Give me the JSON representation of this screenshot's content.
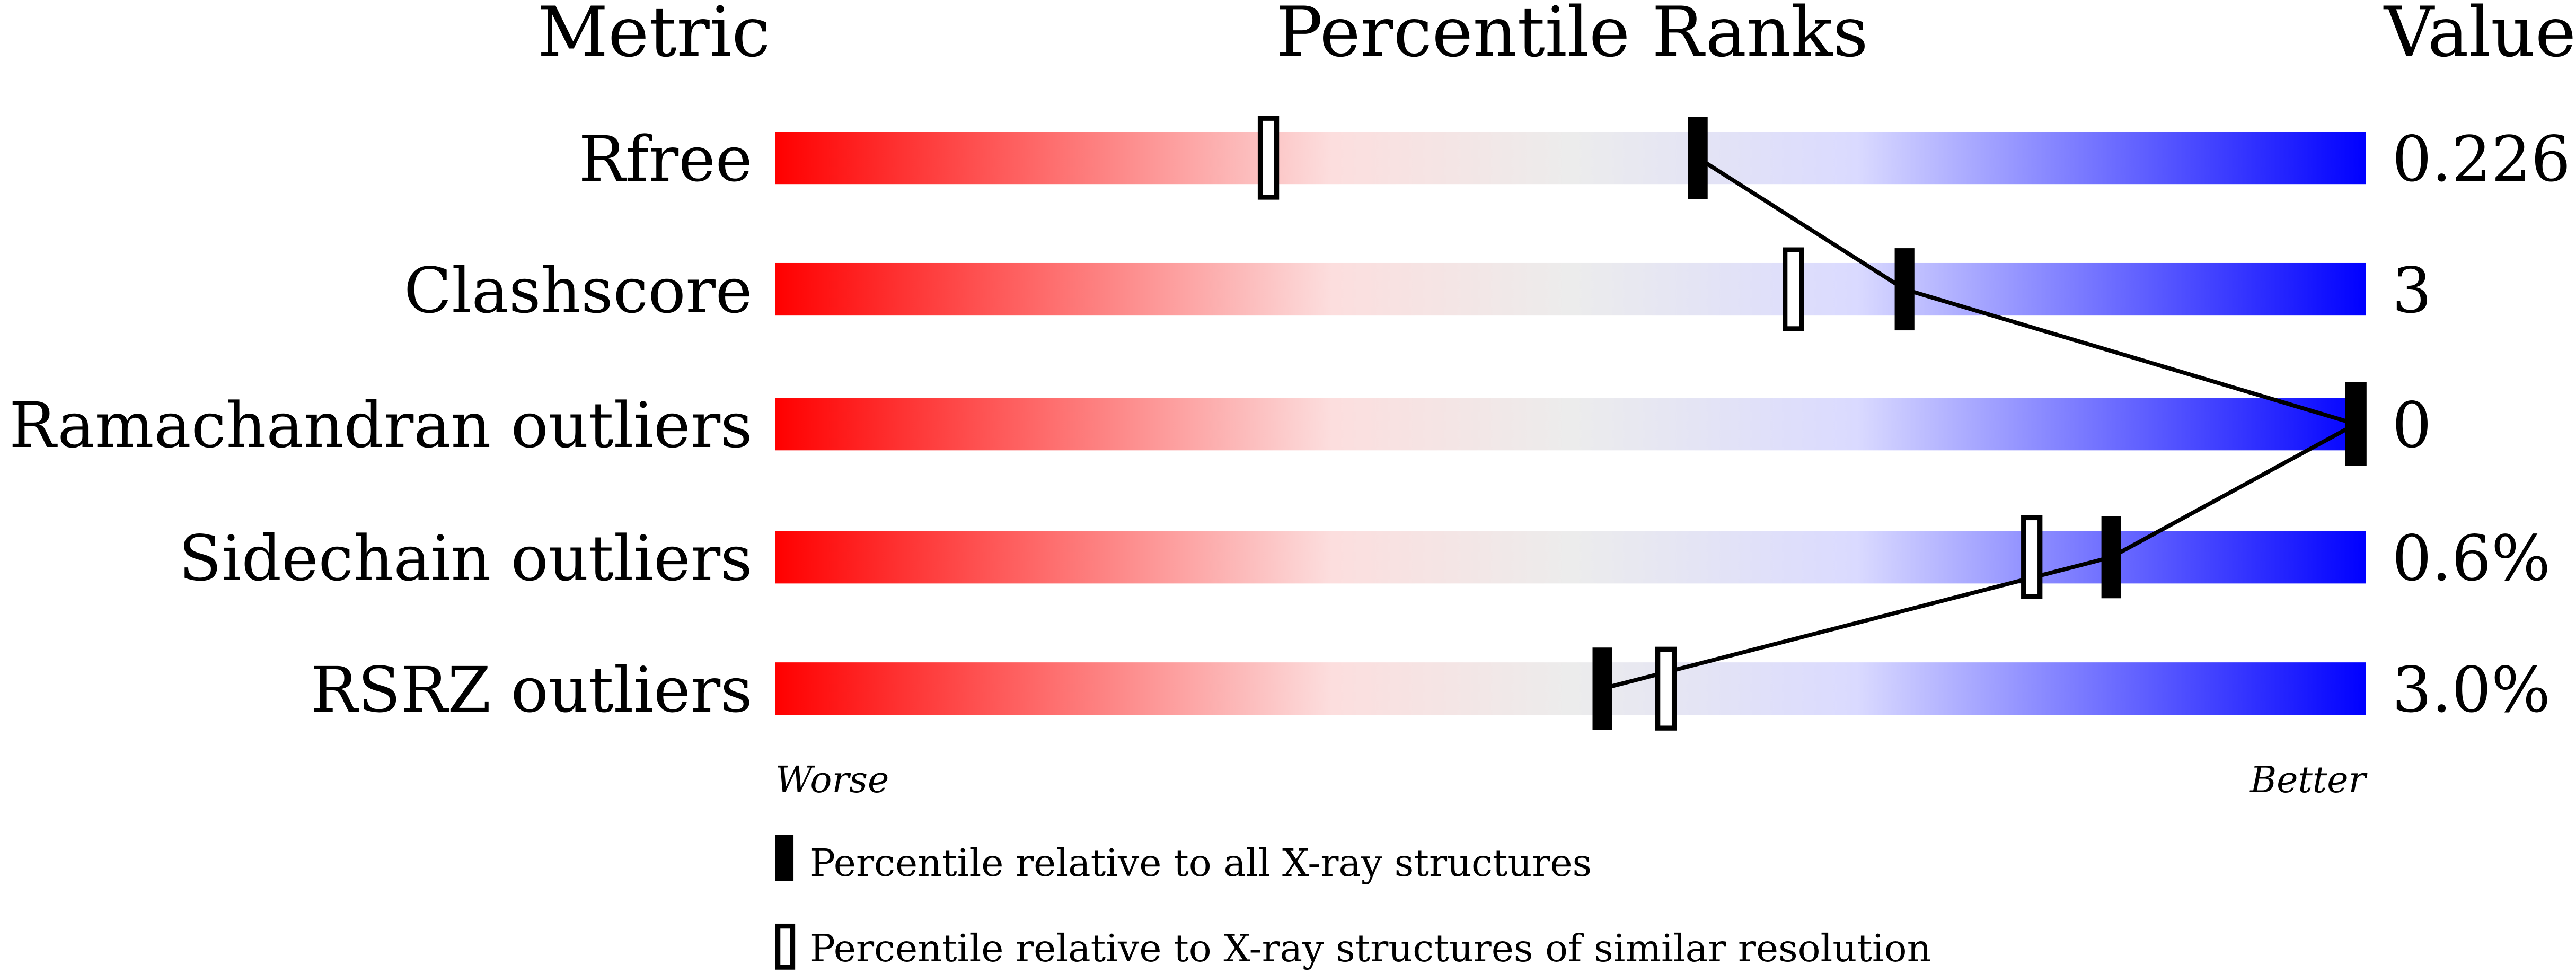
{
  "chart_data": {
    "type": "bar",
    "headers": {
      "metric": "Metric",
      "ranks": "Percentile Ranks",
      "value": "Value"
    },
    "xlim": [
      0,
      100
    ],
    "axis_labels": {
      "left": "Worse",
      "right": "Better"
    },
    "colors": {
      "worse": "#ff0000",
      "mid": "#ececec",
      "better": "#0000ff",
      "marker": "#000000"
    },
    "rows": [
      {
        "metric": "Rfree",
        "value": "0.226",
        "percentile_all": 58,
        "percentile_similar": 31
      },
      {
        "metric": "Clashscore",
        "value": "3",
        "percentile_all": 71,
        "percentile_similar": 64
      },
      {
        "metric": "Ramachandran outliers",
        "value": "0",
        "percentile_all": 100,
        "percentile_similar": 100
      },
      {
        "metric": "Sidechain outliers",
        "value": "0.6%",
        "percentile_all": 84,
        "percentile_similar": 79
      },
      {
        "metric": "RSRZ outliers",
        "value": "3.0%",
        "percentile_all": 52,
        "percentile_similar": 56
      }
    ],
    "legend": [
      {
        "marker": "filled",
        "label": "Percentile relative to all X-ray structures"
      },
      {
        "marker": "open",
        "label": "Percentile relative to X-ray structures of similar resolution"
      }
    ]
  }
}
